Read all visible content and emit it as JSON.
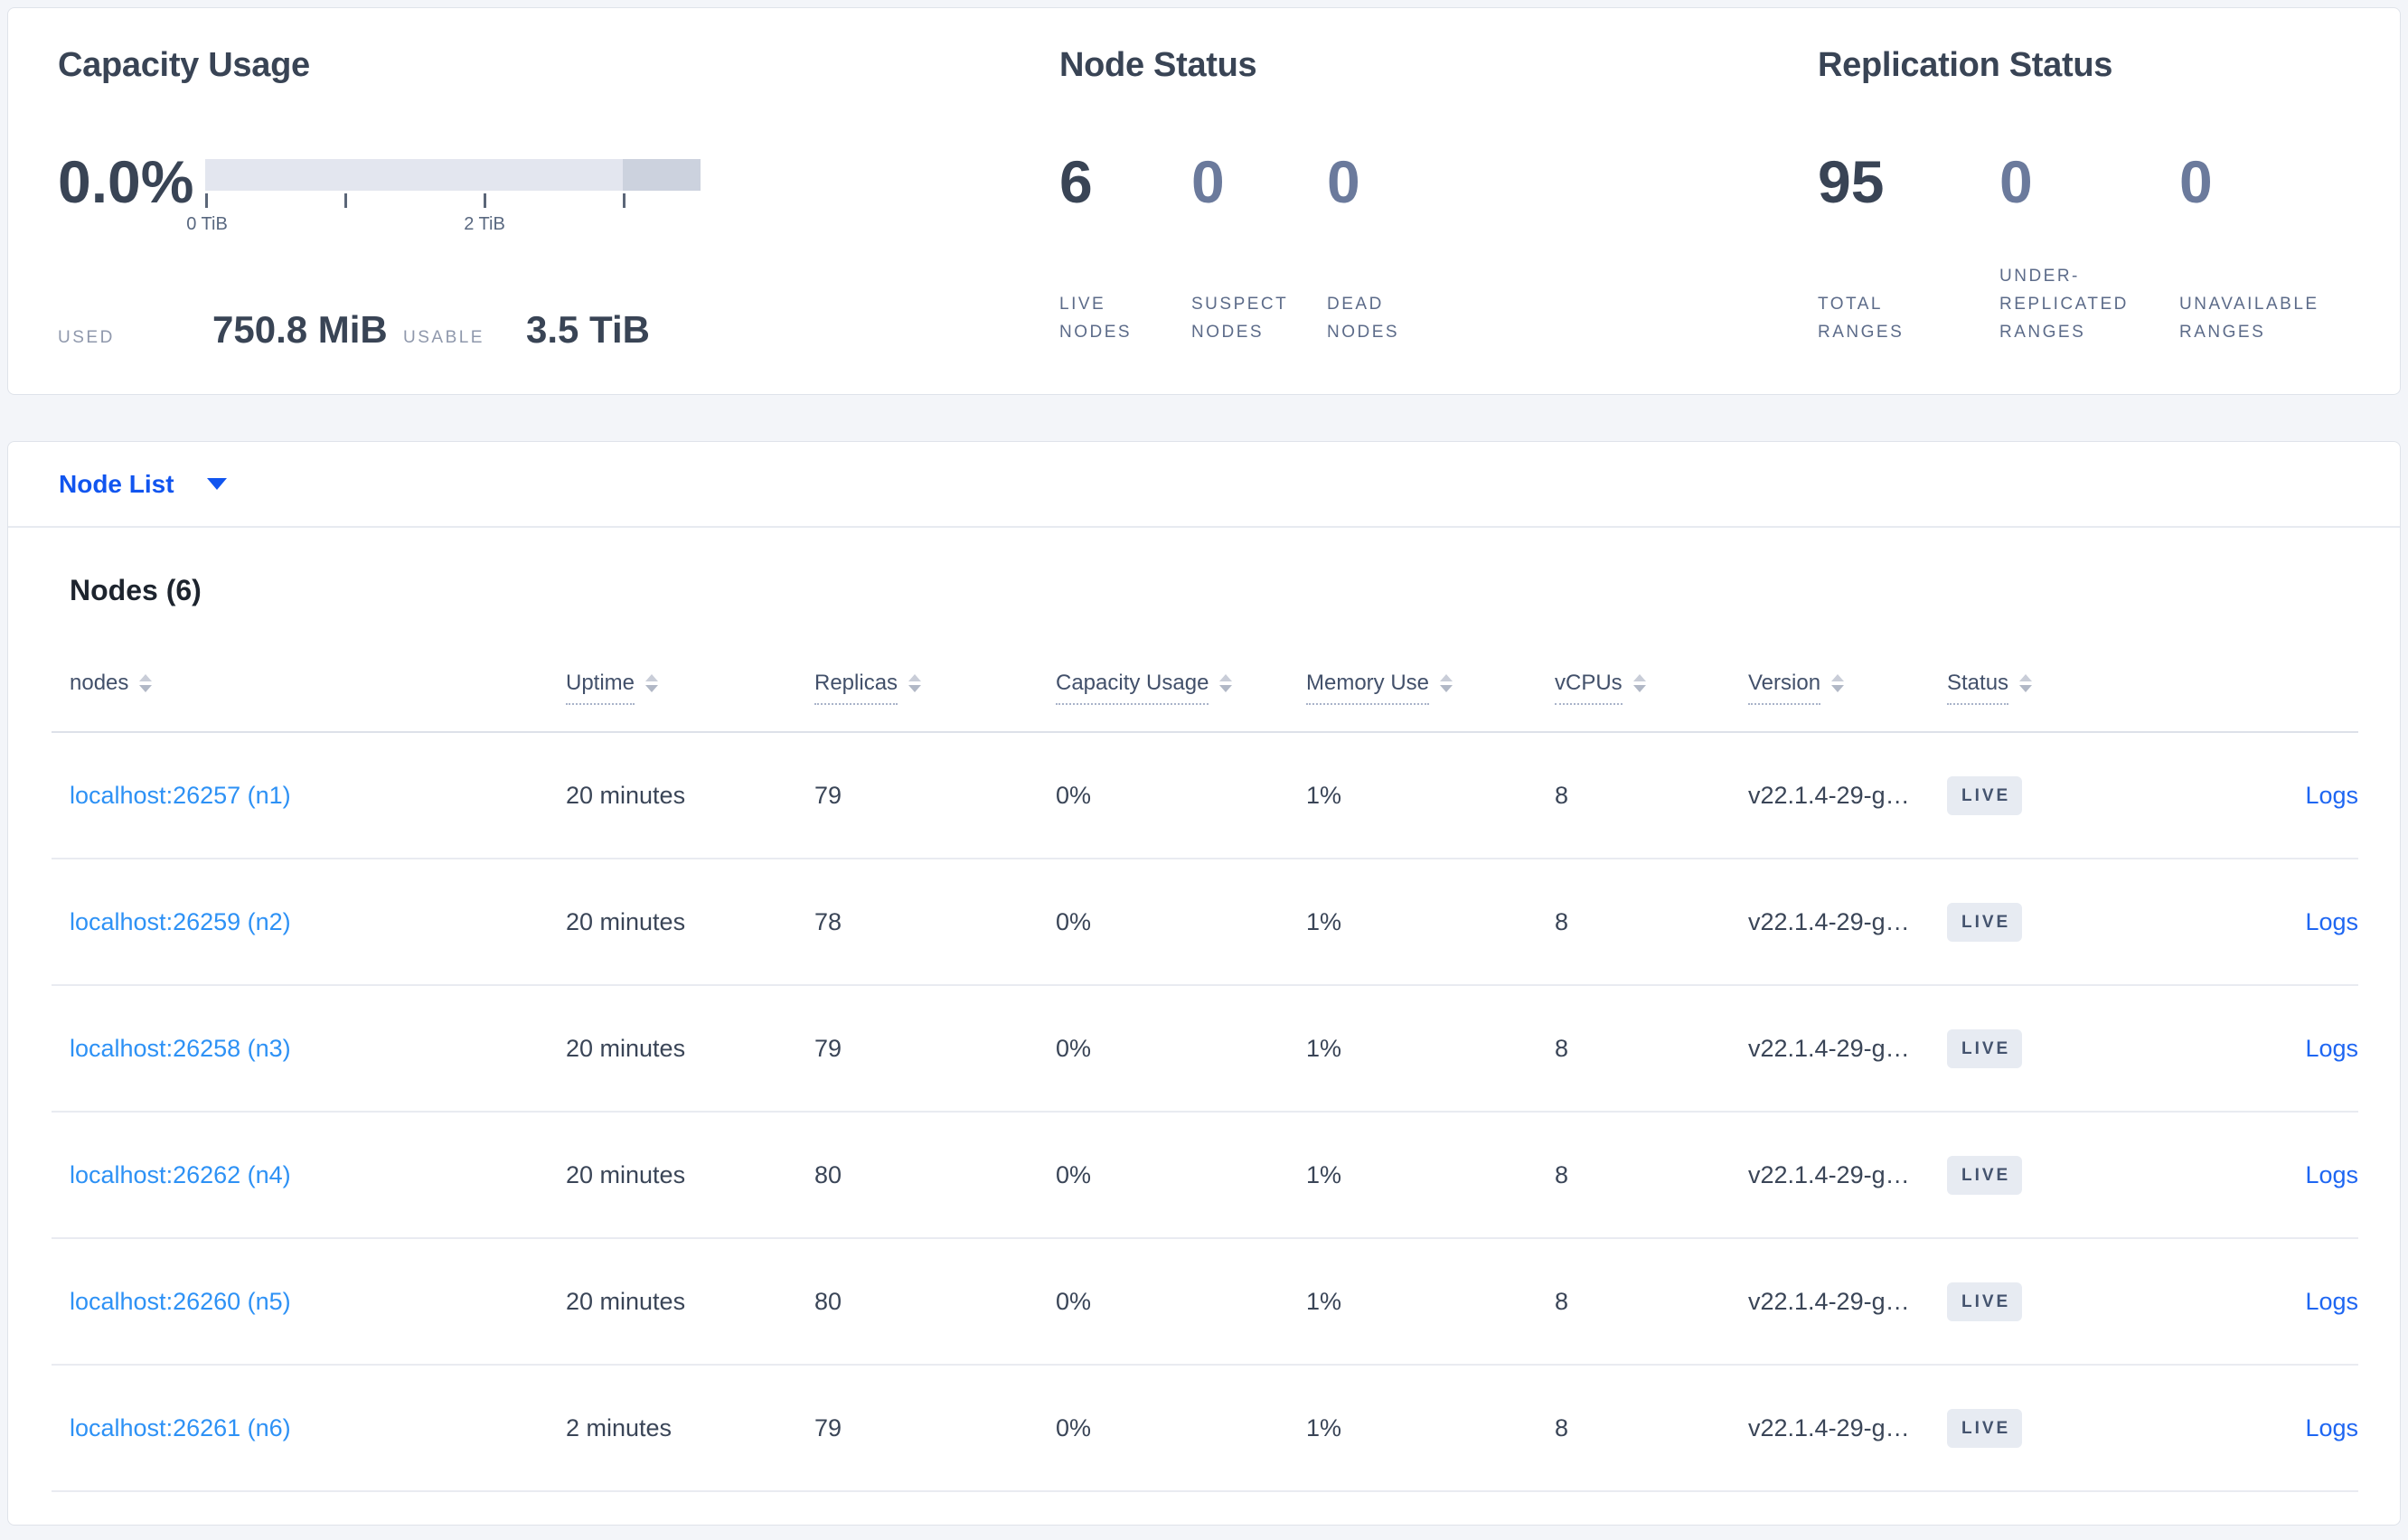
{
  "colors": {
    "accent_blue": "#1155ef",
    "node_link_blue": "#2d91f5",
    "logs_link_blue": "#1e66f2",
    "dark_text": "#394455",
    "muted_value": "#6b7a9c",
    "stat_label": "#5c6b89",
    "badge_bg": "#e7ebf2",
    "bar_track": "#e3e6ef",
    "bar_segment": "#ccd2de"
  },
  "capacity": {
    "title": "Capacity Usage",
    "percent": "0.0%",
    "tick_labels": [
      "0 TiB",
      "2 TiB"
    ],
    "used_label": "USED",
    "used_value": "750.8 MiB",
    "usable_label": "USABLE",
    "usable_value": "3.5 TiB"
  },
  "node_status": {
    "title": "Node Status",
    "stats": [
      {
        "value": "6",
        "label": "LIVE NODES",
        "muted": false
      },
      {
        "value": "0",
        "label": "SUSPECT NODES",
        "muted": true
      },
      {
        "value": "0",
        "label": "DEAD NODES",
        "muted": true
      }
    ]
  },
  "replication_status": {
    "title": "Replication Status",
    "stats": [
      {
        "value": "95",
        "label": "TOTAL RANGES",
        "muted": false
      },
      {
        "value": "0",
        "label": "UNDER-REPLICATED RANGES",
        "muted": true
      },
      {
        "value": "0",
        "label": "UNAVAILABLE RANGES",
        "muted": true
      }
    ]
  },
  "node_list": {
    "label": "Node List"
  },
  "nodes_section": {
    "title": "Nodes (6)",
    "logs_label": "Logs",
    "status_live": "LIVE",
    "columns": [
      {
        "label": "nodes",
        "underlined": false,
        "sortable": true
      },
      {
        "label": "Uptime",
        "underlined": true,
        "sortable": true
      },
      {
        "label": "Replicas",
        "underlined": true,
        "sortable": true
      },
      {
        "label": "Capacity Usage",
        "underlined": true,
        "sortable": true
      },
      {
        "label": "Memory Use",
        "underlined": true,
        "sortable": true
      },
      {
        "label": "vCPUs",
        "underlined": true,
        "sortable": true
      },
      {
        "label": "Version",
        "underlined": true,
        "sortable": true
      },
      {
        "label": "Status",
        "underlined": true,
        "sortable": true
      },
      {
        "label": "",
        "underlined": false,
        "sortable": false
      }
    ],
    "rows": [
      {
        "node": "localhost:26257 (n1)",
        "uptime": "20 minutes",
        "replicas": "79",
        "capacity_usage": "0%",
        "memory_use": "1%",
        "vcpus": "8",
        "version": "v22.1.4-29-g…",
        "status": "LIVE"
      },
      {
        "node": "localhost:26259 (n2)",
        "uptime": "20 minutes",
        "replicas": "78",
        "capacity_usage": "0%",
        "memory_use": "1%",
        "vcpus": "8",
        "version": "v22.1.4-29-g…",
        "status": "LIVE"
      },
      {
        "node": "localhost:26258 (n3)",
        "uptime": "20 minutes",
        "replicas": "79",
        "capacity_usage": "0%",
        "memory_use": "1%",
        "vcpus": "8",
        "version": "v22.1.4-29-g…",
        "status": "LIVE"
      },
      {
        "node": "localhost:26262 (n4)",
        "uptime": "20 minutes",
        "replicas": "80",
        "capacity_usage": "0%",
        "memory_use": "1%",
        "vcpus": "8",
        "version": "v22.1.4-29-g…",
        "status": "LIVE"
      },
      {
        "node": "localhost:26260 (n5)",
        "uptime": "20 minutes",
        "replicas": "80",
        "capacity_usage": "0%",
        "memory_use": "1%",
        "vcpus": "8",
        "version": "v22.1.4-29-g…",
        "status": "LIVE"
      },
      {
        "node": "localhost:26261 (n6)",
        "uptime": "2 minutes",
        "replicas": "79",
        "capacity_usage": "0%",
        "memory_use": "1%",
        "vcpus": "8",
        "version": "v22.1.4-29-g…",
        "status": "LIVE"
      }
    ]
  }
}
